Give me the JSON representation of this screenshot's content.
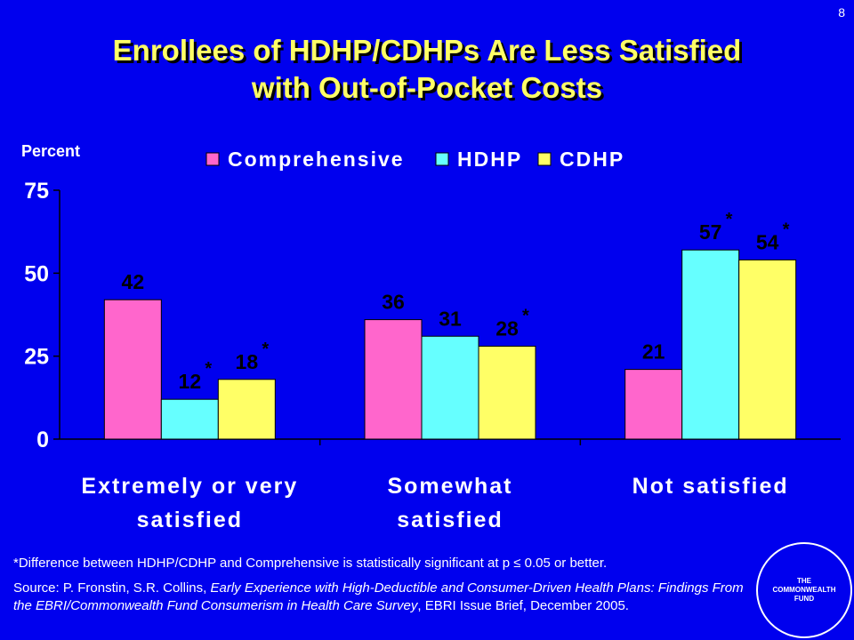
{
  "page_number": "8",
  "title_line1": "Enrollees of HDHP/CDHPs Are Less Satisfied",
  "title_line2": "with Out-of-Pocket Costs",
  "footnote": "*Difference between HDHP/CDHP and Comprehensive is statistically significant at p ≤ 0.05 or better.",
  "source": {
    "prefix": "Source: P. Fronstin, S.R. Collins, ",
    "italic": "Early Experience with High-Deductible and Consumer-Driven Health Plans: Findings From the EBRI/Commonwealth Fund Consumerism in Health Care Survey",
    "suffix": ", EBRI Issue Brief, December 2005."
  },
  "logo": {
    "line1": "THE",
    "line2": "COMMONWEALTH",
    "line3": "FUND"
  },
  "chart_data": {
    "type": "bar",
    "ylabel": "Percent",
    "ylim": [
      0,
      75
    ],
    "yticks": [
      0,
      25,
      50,
      75
    ],
    "grid": false,
    "legend_position": "top",
    "categories": [
      [
        "Extremely or very",
        "satisfied"
      ],
      [
        "Somewhat",
        "satisfied"
      ],
      [
        "Not satisfied"
      ]
    ],
    "series": [
      {
        "name": "Comprehensive",
        "color": "#FF66CC",
        "values": [
          42,
          36,
          21
        ],
        "significant": [
          false,
          false,
          false
        ]
      },
      {
        "name": "HDHP",
        "color": "#66FFFF",
        "values": [
          12,
          31,
          57
        ],
        "significant": [
          true,
          false,
          true
        ]
      },
      {
        "name": "CDHP",
        "color": "#FFFF66",
        "values": [
          18,
          28,
          54
        ],
        "significant": [
          true,
          true,
          true
        ]
      }
    ],
    "significance_marker": "*"
  }
}
